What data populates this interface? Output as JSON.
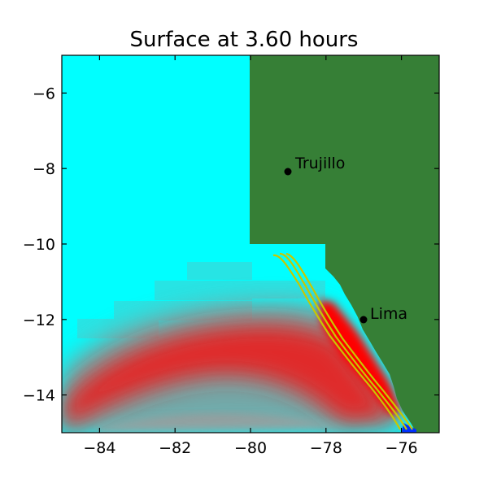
{
  "title": "Surface at 3.60 hours",
  "colors": {
    "ocean": "#00ffff",
    "land": "#367f36",
    "wave_red": "#e02a2a",
    "wave_bright": "#ff0000",
    "contour": "#c8c800",
    "deep_blue": "#0030ff",
    "axis": "#000000"
  },
  "axes": {
    "xlim": [
      -85,
      -75
    ],
    "ylim": [
      -15,
      -5
    ],
    "xticks": [
      -84,
      -82,
      -80,
      -78,
      -76
    ],
    "yticks": [
      -6,
      -8,
      -10,
      -12,
      -14
    ],
    "xtick_labels": [
      "−84",
      "−82",
      "−80",
      "−78",
      "−76"
    ],
    "ytick_labels": [
      "−6",
      "−8",
      "−10",
      "−12",
      "−14"
    ]
  },
  "cities": [
    {
      "name": "Trujillo",
      "lon": -79.0,
      "lat": -8.1
    },
    {
      "name": "Lima",
      "lon": -77.0,
      "lat": -12.0
    }
  ]
}
